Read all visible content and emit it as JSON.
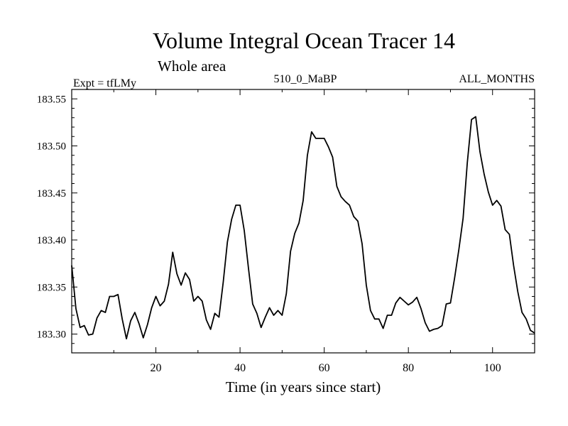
{
  "chart_data": {
    "type": "line",
    "title": "Volume Integral Ocean Tracer 14",
    "subtitle": "Whole area",
    "annotations": {
      "left": "Expt = tfLMy",
      "center": "510_0_MaBP",
      "right": "ALL_MONTHS"
    },
    "xlabel": "Time (in years since start)",
    "ylabel": "",
    "xlim": [
      0,
      110
    ],
    "ylim": [
      183.28,
      183.56
    ],
    "xticks": [
      20,
      40,
      60,
      80,
      100
    ],
    "xtick_labels": [
      "20",
      "40",
      "60",
      "80",
      "100"
    ],
    "yticks": [
      183.3,
      183.35,
      183.4,
      183.45,
      183.5,
      183.55
    ],
    "ytick_labels": [
      "183.30",
      "183.35",
      "183.40",
      "183.45",
      "183.50",
      "183.55"
    ],
    "line_color": "#000000",
    "series": [
      {
        "name": "Tracer 14",
        "x": [
          0,
          1,
          2,
          3,
          4,
          5,
          6,
          7,
          8,
          9,
          10,
          11,
          12,
          13,
          14,
          15,
          16,
          17,
          18,
          19,
          20,
          21,
          22,
          23,
          24,
          25,
          26,
          27,
          28,
          29,
          30,
          31,
          32,
          33,
          34,
          35,
          36,
          37,
          38,
          39,
          40,
          41,
          42,
          43,
          44,
          45,
          46,
          47,
          48,
          49,
          50,
          51,
          52,
          53,
          54,
          55,
          56,
          57,
          58,
          59,
          60,
          61,
          62,
          63,
          64,
          65,
          66,
          67,
          68,
          69,
          70,
          71,
          72,
          73,
          74,
          75,
          76,
          77,
          78,
          79,
          80,
          81,
          82,
          83,
          84,
          85,
          86,
          87,
          88,
          89,
          90,
          91,
          92,
          93,
          94,
          95,
          96,
          97,
          98,
          99,
          100,
          101,
          102,
          103,
          104,
          105,
          106,
          107,
          108,
          109,
          110
        ],
        "values": [
          183.373,
          183.327,
          183.307,
          183.309,
          183.299,
          183.3,
          183.317,
          183.325,
          183.323,
          183.34,
          183.34,
          183.342,
          183.316,
          183.295,
          183.314,
          183.323,
          183.311,
          183.296,
          183.31,
          183.328,
          183.34,
          183.33,
          183.335,
          183.353,
          183.387,
          183.364,
          183.352,
          183.365,
          183.358,
          183.335,
          183.34,
          183.335,
          183.315,
          183.305,
          183.322,
          183.318,
          183.355,
          183.398,
          183.422,
          183.437,
          183.437,
          183.41,
          183.37,
          183.332,
          183.322,
          183.307,
          183.318,
          183.328,
          183.32,
          183.325,
          183.32,
          183.343,
          183.388,
          183.407,
          183.418,
          183.442,
          183.49,
          183.515,
          183.508,
          183.508,
          183.508,
          183.499,
          183.488,
          183.457,
          183.446,
          183.441,
          183.437,
          183.425,
          183.42,
          183.396,
          183.352,
          183.325,
          183.316,
          183.316,
          183.306,
          183.32,
          183.32,
          183.333,
          183.339,
          183.335,
          183.331,
          183.334,
          183.339,
          183.327,
          183.312,
          183.303,
          183.305,
          183.306,
          183.309,
          183.332,
          183.333,
          183.36,
          183.39,
          183.423,
          183.482,
          183.528,
          183.531,
          183.494,
          183.47,
          183.451,
          183.437,
          183.442,
          183.436,
          183.411,
          183.406,
          183.373,
          183.345,
          183.323,
          183.316,
          183.304,
          183.301
        ]
      }
    ]
  }
}
